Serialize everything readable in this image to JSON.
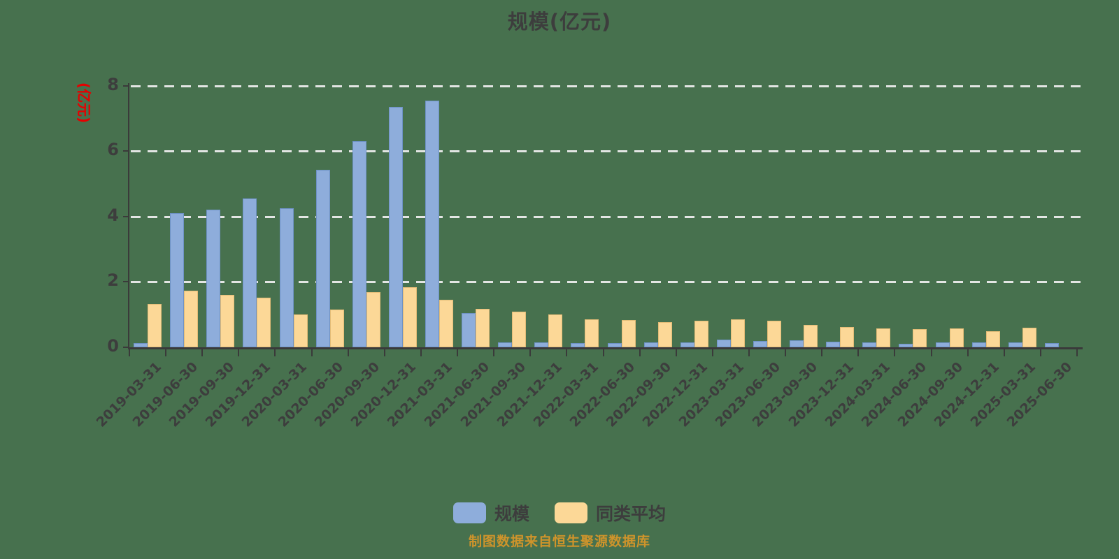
{
  "title": "规模(亿元)",
  "footer": "制图数据来自恒生聚源数据库",
  "colors": {
    "background": "#47714e",
    "series_scale": "#8eaddb",
    "series_peer_avg": "#fcd897",
    "axis": "#3a3a3a",
    "gridline": "#ebebeb",
    "text": "#3d3d3d",
    "y_unit_label": "#e60000",
    "footer_text": "#cf942b"
  },
  "chart_data": {
    "type": "bar",
    "title": "规模(亿元)",
    "ylabel": "(亿元)",
    "xlabel": "",
    "ylim": [
      0,
      8
    ],
    "yticks": [
      0,
      2,
      4,
      6,
      8
    ],
    "grid": "horizontal dashed white lines at 2,4,6,8",
    "legend_position": "bottom",
    "categories": [
      "2019-03-31",
      "2019-06-30",
      "2019-09-30",
      "2019-12-31",
      "2020-03-31",
      "2020-06-30",
      "2020-09-30",
      "2020-12-31",
      "2021-03-31",
      "2021-06-30",
      "2021-09-30",
      "2021-12-31",
      "2022-03-31",
      "2022-06-30",
      "2022-09-30",
      "2022-12-31",
      "2023-03-31",
      "2023-06-30",
      "2023-09-30",
      "2023-12-31",
      "2024-03-31",
      "2024-06-30",
      "2024-09-30",
      "2024-12-31",
      "2025-03-31",
      "2025-06-30"
    ],
    "series": [
      {
        "name": "规模",
        "color": "#8eaddb",
        "values": [
          0.13,
          4.1,
          4.2,
          4.55,
          4.25,
          5.42,
          6.3,
          7.35,
          7.55,
          1.05,
          0.15,
          0.15,
          0.12,
          0.13,
          0.16,
          0.15,
          0.24,
          0.2,
          0.21,
          0.18,
          0.14,
          0.11,
          0.16,
          0.16,
          0.16,
          0.13
        ]
      },
      {
        "name": "同类平均",
        "color": "#fcd897",
        "values": [
          1.33,
          1.72,
          1.61,
          1.52,
          1.0,
          1.16,
          1.68,
          1.84,
          1.45,
          1.18,
          1.1,
          1.0,
          0.86,
          0.84,
          0.77,
          0.82,
          0.86,
          0.82,
          0.69,
          0.62,
          0.57,
          0.55,
          0.57,
          0.49,
          0.6,
          null
        ]
      }
    ]
  }
}
